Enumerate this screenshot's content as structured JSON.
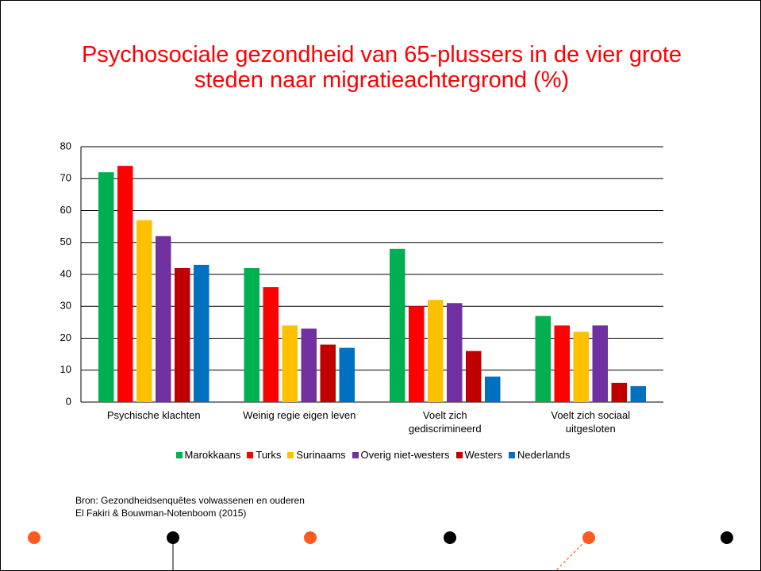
{
  "chart_data": {
    "type": "bar",
    "title": "Psychosociale gezondheid van 65-plussers in de vier grote\nsteden naar migratieachtergrond (%)",
    "categories": [
      "Psychische klachten",
      "Weinig regie eigen leven",
      "Voelt zich\ngediscrimineerd",
      "Voelt zich sociaal\nuitgesloten"
    ],
    "series": [
      {
        "name": "Marokkaans",
        "color": "#00b050",
        "values": [
          72,
          42,
          48,
          27
        ]
      },
      {
        "name": "Turks",
        "color": "#ff0000",
        "values": [
          74,
          36,
          30,
          24
        ]
      },
      {
        "name": "Surinaams",
        "color": "#ffc000",
        "values": [
          57,
          24,
          32,
          22
        ]
      },
      {
        "name": "Overig niet-westers",
        "color": "#7030a0",
        "values": [
          52,
          23,
          31,
          24
        ]
      },
      {
        "name": "Westers",
        "color": "#c00000",
        "values": [
          42,
          18,
          16,
          6
        ]
      },
      {
        "name": "Nederlands",
        "color": "#0070c0",
        "values": [
          43,
          17,
          8,
          5
        ]
      }
    ],
    "ylim": [
      0,
      80
    ],
    "yticks": [
      0,
      10,
      20,
      30,
      40,
      50,
      60,
      70,
      80
    ],
    "grid": true,
    "legend": "bottom",
    "source": [
      "Bron: Gezondheidsenquêtes volwassenen en ouderen",
      "El Fakiri & Bouwman-Notenboom (2015)"
    ]
  }
}
